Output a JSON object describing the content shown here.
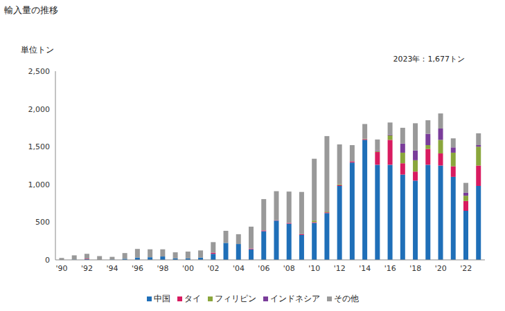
{
  "chart_data": {
    "type": "bar",
    "title": "輸入量の推移",
    "subtitle": "2023年：1,677トン",
    "y_label": "単位トン",
    "stacked": true,
    "grid": false,
    "legend": "bottom",
    "categories": [
      "'90",
      null,
      "'92",
      null,
      "'94",
      null,
      "'96",
      null,
      "'98",
      null,
      "'00",
      null,
      "'02",
      null,
      "'04",
      null,
      "'06",
      null,
      "'08",
      null,
      "'10",
      null,
      "'12",
      null,
      "'14",
      null,
      "'16",
      null,
      "'18",
      null,
      "'20",
      null,
      "'22",
      null
    ],
    "ylim": [
      0,
      2500
    ],
    "yticks": [
      0,
      500,
      {
        "value": 1000,
        "label": "1,000"
      },
      {
        "value": 1500,
        "label": "1,500"
      },
      {
        "value": 2000,
        "label": "2,000"
      },
      {
        "value": 2500,
        "label": "2,500"
      }
    ],
    "series": [
      {
        "name": "中国",
        "color": "#1f6fb8",
        "values": [
          0,
          5,
          10,
          0,
          5,
          15,
          30,
          35,
          45,
          20,
          20,
          30,
          80,
          225,
          210,
          140,
          380,
          520,
          480,
          330,
          490,
          620,
          980,
          1290,
          1590,
          1260,
          1260,
          1130,
          1050,
          1260,
          1250,
          1100,
          650,
          980
        ]
      },
      {
        "name": "タイ",
        "color": "#d81b60",
        "values": [
          0,
          0,
          5,
          0,
          0,
          0,
          0,
          0,
          0,
          0,
          0,
          0,
          15,
          0,
          0,
          10,
          10,
          5,
          10,
          10,
          10,
          10,
          10,
          15,
          10,
          170,
          330,
          150,
          120,
          210,
          160,
          140,
          130,
          270
        ]
      },
      {
        "name": "フィリピン",
        "color": "#8aa63c",
        "values": [
          0,
          0,
          0,
          0,
          0,
          0,
          0,
          0,
          0,
          0,
          0,
          0,
          0,
          0,
          0,
          0,
          0,
          0,
          0,
          0,
          20,
          10,
          10,
          0,
          5,
          10,
          60,
          140,
          150,
          50,
          180,
          180,
          70,
          250
        ]
      },
      {
        "name": "インドネシア",
        "color": "#7a3d9a",
        "values": [
          0,
          0,
          0,
          0,
          0,
          0,
          0,
          0,
          0,
          0,
          0,
          0,
          0,
          0,
          0,
          0,
          0,
          0,
          0,
          0,
          0,
          0,
          0,
          0,
          0,
          10,
          10,
          120,
          130,
          150,
          150,
          70,
          40,
          20
        ]
      },
      {
        "name": "その他",
        "color": "#999999",
        "values": [
          25,
          55,
          65,
          50,
          35,
          75,
          115,
          105,
          95,
          80,
          90,
          95,
          140,
          160,
          130,
          290,
          415,
          385,
          415,
          560,
          820,
          1000,
          530,
          215,
          195,
          145,
          160,
          210,
          360,
          180,
          200,
          120,
          130,
          157
        ]
      }
    ]
  }
}
